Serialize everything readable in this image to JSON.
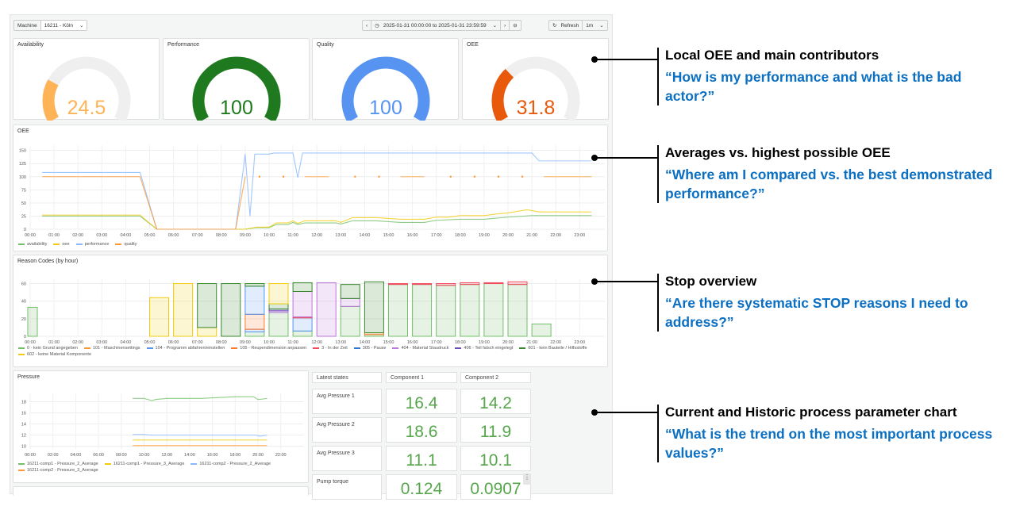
{
  "toolbar": {
    "machine_label": "Machine",
    "machine_value": "16211 - Köln",
    "time_range": "2025-01-31 00:00:00 to 2025-01-31 23:59:59",
    "refresh_label": "Refresh",
    "refresh_interval": "1m"
  },
  "gauges": [
    {
      "title": "Availability",
      "value": 24.5,
      "display": "24.5",
      "max": 100,
      "color": "#ffb357"
    },
    {
      "title": "Performance",
      "value": 100,
      "display": "100",
      "max": 100,
      "color": "#1f7a1f"
    },
    {
      "title": "Quality",
      "value": 100,
      "display": "100",
      "max": 100,
      "color": "#5794f2"
    },
    {
      "title": "OEE",
      "value": 31.8,
      "display": "31.8",
      "max": 100,
      "color": "#e8590c"
    }
  ],
  "oee_panel": {
    "title": "OEE"
  },
  "reason_panel": {
    "title": "Reason Codes (by hour)"
  },
  "pressure_panel": {
    "title": "Pressure"
  },
  "chart_data": [
    {
      "type": "line",
      "title": "OEE",
      "ylim": [
        0,
        160
      ],
      "yticks": [
        0,
        25,
        50,
        75,
        100,
        125,
        150
      ],
      "xticks": [
        "00:00",
        "01:00",
        "02:00",
        "03:00",
        "04:00",
        "05:00",
        "06:00",
        "07:00",
        "08:00",
        "09:00",
        "10:00",
        "11:00",
        "12:00",
        "13:00",
        "14:00",
        "15:00",
        "16:00",
        "17:00",
        "18:00",
        "19:00",
        "20:00",
        "21:00",
        "22:00",
        "23:00"
      ],
      "legend_position": "bottom-left",
      "grid": true,
      "series": [
        {
          "name": "availability",
          "color": "#73bf69",
          "points": [
            [
              0.5,
              25
            ],
            [
              4.6,
              25
            ],
            [
              5.3,
              0
            ],
            [
              9,
              0
            ],
            [
              9.5,
              3
            ],
            [
              10,
              3
            ],
            [
              10.3,
              9
            ],
            [
              10.8,
              9
            ],
            [
              11,
              13
            ],
            [
              11.2,
              9
            ],
            [
              11.5,
              12
            ],
            [
              12.8,
              12
            ],
            [
              13,
              10
            ],
            [
              13.5,
              16
            ],
            [
              14.5,
              16
            ],
            [
              15.5,
              13
            ],
            [
              16.5,
              13
            ],
            [
              17,
              17
            ],
            [
              18,
              19
            ],
            [
              19,
              19
            ],
            [
              19.5,
              21
            ],
            [
              20,
              23
            ],
            [
              21,
              26
            ],
            [
              23.5,
              26
            ]
          ]
        },
        {
          "name": "oee",
          "color": "#f2cc0c",
          "points": [
            [
              0.5,
              27
            ],
            [
              4.6,
              27
            ],
            [
              5.3,
              0
            ],
            [
              9,
              0
            ],
            [
              9.5,
              4
            ],
            [
              10,
              4
            ],
            [
              10.3,
              12
            ],
            [
              10.8,
              12
            ],
            [
              11,
              16
            ],
            [
              11.2,
              11
            ],
            [
              11.5,
              16
            ],
            [
              12.8,
              16
            ],
            [
              13,
              13
            ],
            [
              13.5,
              22
            ],
            [
              14.5,
              22
            ],
            [
              15.5,
              19
            ],
            [
              16.5,
              19
            ],
            [
              17,
              23
            ],
            [
              17.5,
              23
            ],
            [
              18,
              26
            ],
            [
              19,
              26
            ],
            [
              19.5,
              29
            ],
            [
              20,
              31
            ],
            [
              20.8,
              37
            ],
            [
              21.3,
              33
            ],
            [
              23.5,
              33
            ]
          ]
        },
        {
          "name": "performance",
          "color": "#8ab8ff",
          "points": [
            [
              0.5,
              108
            ],
            [
              4.6,
              108
            ],
            [
              5.3,
              0
            ],
            [
              8.6,
              0
            ],
            [
              9,
              143
            ],
            [
              9.2,
              25
            ],
            [
              9.4,
              143
            ],
            [
              10,
              143
            ],
            [
              10.2,
              145
            ],
            [
              11,
              145
            ],
            [
              11.2,
              98
            ],
            [
              11.4,
              145
            ],
            [
              21,
              145
            ],
            [
              21.3,
              130
            ],
            [
              23.5,
              130
            ]
          ]
        },
        {
          "name": "quality",
          "color": "#ff9830",
          "points": [
            [
              0.5,
              100
            ],
            [
              4.6,
              100
            ],
            [
              5.3,
              0
            ],
            [
              8.6,
              0
            ],
            [
              9,
              100
            ]
          ],
          "segments": [
            [
              11.5,
              12.5,
              100
            ],
            [
              15.5,
              16.5,
              100
            ],
            [
              21.5,
              23.5,
              100
            ]
          ],
          "dots": [
            [
              9.6,
              100
            ],
            [
              10.6,
              100
            ],
            [
              13.6,
              100
            ],
            [
              14.6,
              100
            ],
            [
              17.6,
              100
            ],
            [
              18.6,
              100
            ],
            [
              19.6,
              100
            ],
            [
              20.6,
              100
            ]
          ]
        }
      ]
    },
    {
      "type": "bar",
      "stacked": true,
      "title": "Reason Codes (by hour)",
      "ylim": [
        0,
        65
      ],
      "yticks": [
        0,
        20,
        40,
        60
      ],
      "xticks": [
        "00:00",
        "01:00",
        "02:00",
        "03:00",
        "04:00",
        "05:00",
        "06:00",
        "07:00",
        "08:00",
        "09:00",
        "10:00",
        "11:00",
        "12:00",
        "13:00",
        "14:00",
        "15:00",
        "16:00",
        "17:00",
        "18:00",
        "19:00",
        "20:00",
        "21:00",
        "22:00",
        "23:00"
      ],
      "legend_position": "bottom-left",
      "grid": true,
      "codes": [
        {
          "code": "0",
          "name": "0 - kein Grund angegeben",
          "color": "#73bf69"
        },
        {
          "code": "101",
          "name": "101 - Maschinensettings",
          "color": "#ff9830"
        },
        {
          "code": "104",
          "name": "104 - Programm abfahren/einstellen",
          "color": "#5794f2"
        },
        {
          "code": "105",
          "name": "105 - Reupendimension anpassen",
          "color": "#ff7a2f"
        },
        {
          "code": "3",
          "name": "3 - In der Zeit",
          "color": "#f2495c"
        },
        {
          "code": "305",
          "name": "305 - Pause",
          "color": "#3274d9"
        },
        {
          "code": "404",
          "name": "404 - Material Staudruck",
          "color": "#b877d9"
        },
        {
          "code": "406",
          "name": "406 - Teil falsch eingelegt",
          "color": "#6e4fb8"
        },
        {
          "code": "601",
          "name": "601 - kein Bauteile / Hilfsstoffe",
          "color": "#37872d"
        },
        {
          "code": "602",
          "name": "602 - keine Material Komponente",
          "color": "#f2cc0c"
        }
      ],
      "bars": [
        {
          "hour": 0,
          "stacks": [
            [
              "0",
              33
            ]
          ]
        },
        {
          "hour": 5,
          "stacks": [
            [
              "602",
              44
            ]
          ]
        },
        {
          "hour": 6,
          "stacks": [
            [
              "602",
              60
            ]
          ]
        },
        {
          "hour": 7,
          "stacks": [
            [
              "602",
              10
            ],
            [
              "601",
              50
            ]
          ]
        },
        {
          "hour": 8,
          "stacks": [
            [
              "601",
              60
            ]
          ]
        },
        {
          "hour": 9,
          "stacks": [
            [
              "0",
              5
            ],
            [
              "104",
              3
            ],
            [
              "105",
              17
            ],
            [
              "104",
              32
            ],
            [
              "601",
              3
            ]
          ]
        },
        {
          "hour": 10,
          "stacks": [
            [
              "0",
              27
            ],
            [
              "404",
              2
            ],
            [
              "406",
              2
            ],
            [
              "601",
              6
            ],
            [
              "602",
              23
            ]
          ]
        },
        {
          "hour": 11,
          "stacks": [
            [
              "0",
              6
            ],
            [
              "104",
              15
            ],
            [
              "3",
              1
            ],
            [
              "404",
              29
            ],
            [
              "601",
              10
            ]
          ]
        },
        {
          "hour": 12,
          "stacks": [
            [
              "404",
              61
            ]
          ]
        },
        {
          "hour": 13,
          "stacks": [
            [
              "0",
              34
            ],
            [
              "404",
              9
            ],
            [
              "601",
              16
            ]
          ]
        },
        {
          "hour": 14,
          "stacks": [
            [
              "0",
              2
            ],
            [
              "105",
              2
            ],
            [
              "601",
              58
            ]
          ]
        },
        {
          "hour": 15,
          "stacks": [
            [
              "0",
              59
            ],
            [
              "3",
              1
            ]
          ]
        },
        {
          "hour": 16,
          "stacks": [
            [
              "0",
              59
            ],
            [
              "3",
              1
            ]
          ]
        },
        {
          "hour": 17,
          "stacks": [
            [
              "0",
              58
            ],
            [
              "3",
              2
            ]
          ]
        },
        {
          "hour": 18,
          "stacks": [
            [
              "0",
              59
            ],
            [
              "3",
              2
            ]
          ]
        },
        {
          "hour": 19,
          "stacks": [
            [
              "0",
              60
            ],
            [
              "3",
              1
            ]
          ]
        },
        {
          "hour": 20,
          "stacks": [
            [
              "0",
              59
            ],
            [
              "3",
              3
            ]
          ]
        },
        {
          "hour": 21,
          "stacks": [
            [
              "0",
              14
            ]
          ]
        }
      ]
    },
    {
      "type": "line",
      "title": "Pressure",
      "ylim": [
        9.5,
        19.5
      ],
      "yticks": [
        10,
        12,
        14,
        16,
        18
      ],
      "xticks": [
        "00:00",
        "02:00",
        "04:00",
        "06:00",
        "08:00",
        "10:00",
        "12:00",
        "14:00",
        "16:00",
        "18:00",
        "20:00",
        "22:00"
      ],
      "legend_position": "bottom-left",
      "grid": true,
      "series": [
        {
          "name": "16211-comp1 - Pressure_2_Average",
          "color": "#73bf69",
          "points": [
            [
              9,
              18.6
            ],
            [
              9.5,
              18.6
            ],
            [
              10,
              18.6
            ],
            [
              10.7,
              18.2
            ],
            [
              11,
              18.4
            ],
            [
              12,
              18.6
            ],
            [
              13,
              18.6
            ],
            [
              14,
              18.6
            ],
            [
              15,
              18.6
            ],
            [
              16,
              18.7
            ],
            [
              17,
              18.8
            ],
            [
              18,
              18.9
            ],
            [
              19,
              18.9
            ],
            [
              19.6,
              18.9
            ],
            [
              20,
              18.4
            ],
            [
              20.5,
              18.5
            ],
            [
              20.8,
              18.6
            ]
          ]
        },
        {
          "name": "16211-comp1 - Pressure_3_Average",
          "color": "#f2cc0c",
          "points": [
            [
              9,
              11.1
            ],
            [
              20.8,
              11.1
            ]
          ]
        },
        {
          "name": "16211-comp2 - Pressure_2_Average",
          "color": "#8ab8ff",
          "points": [
            [
              9,
              12.1
            ],
            [
              10,
              12.1
            ],
            [
              10.5,
              12.0
            ],
            [
              19.8,
              12.0
            ],
            [
              20.2,
              11.8
            ],
            [
              20.8,
              12.0
            ]
          ]
        },
        {
          "name": "16211-comp2 - Pressure_3_Average",
          "color": "#ff9830",
          "points": [
            [
              9,
              10.1
            ],
            [
              20.8,
              10.1
            ]
          ]
        }
      ]
    }
  ],
  "states": {
    "header": "Latest states",
    "columns": [
      "Component 1",
      "Component 2"
    ],
    "rows": [
      {
        "label": "Avg Pressure 1",
        "values": [
          "16.4",
          "14.2"
        ]
      },
      {
        "label": "Avg Pressure 2",
        "values": [
          "18.6",
          "11.9"
        ]
      },
      {
        "label": "Avg Pressure 3",
        "values": [
          "11.1",
          "10.1"
        ]
      },
      {
        "label": "Pump torque",
        "values": [
          "0.124",
          "0.0907"
        ]
      }
    ]
  },
  "annotations": [
    {
      "heading": "Local OEE and main contributors",
      "question": "“How is my performance and what is the bad actor?”"
    },
    {
      "heading": "Averages vs. highest possible OEE",
      "question": "“Where am I compared vs. the best demonstrated performance?”"
    },
    {
      "heading": "Stop overview",
      "question": "“Are there systematic STOP reasons I need to address?”"
    },
    {
      "heading": "Current and Historic process parameter chart",
      "question": "“What is the trend on the most important process values?”"
    }
  ]
}
